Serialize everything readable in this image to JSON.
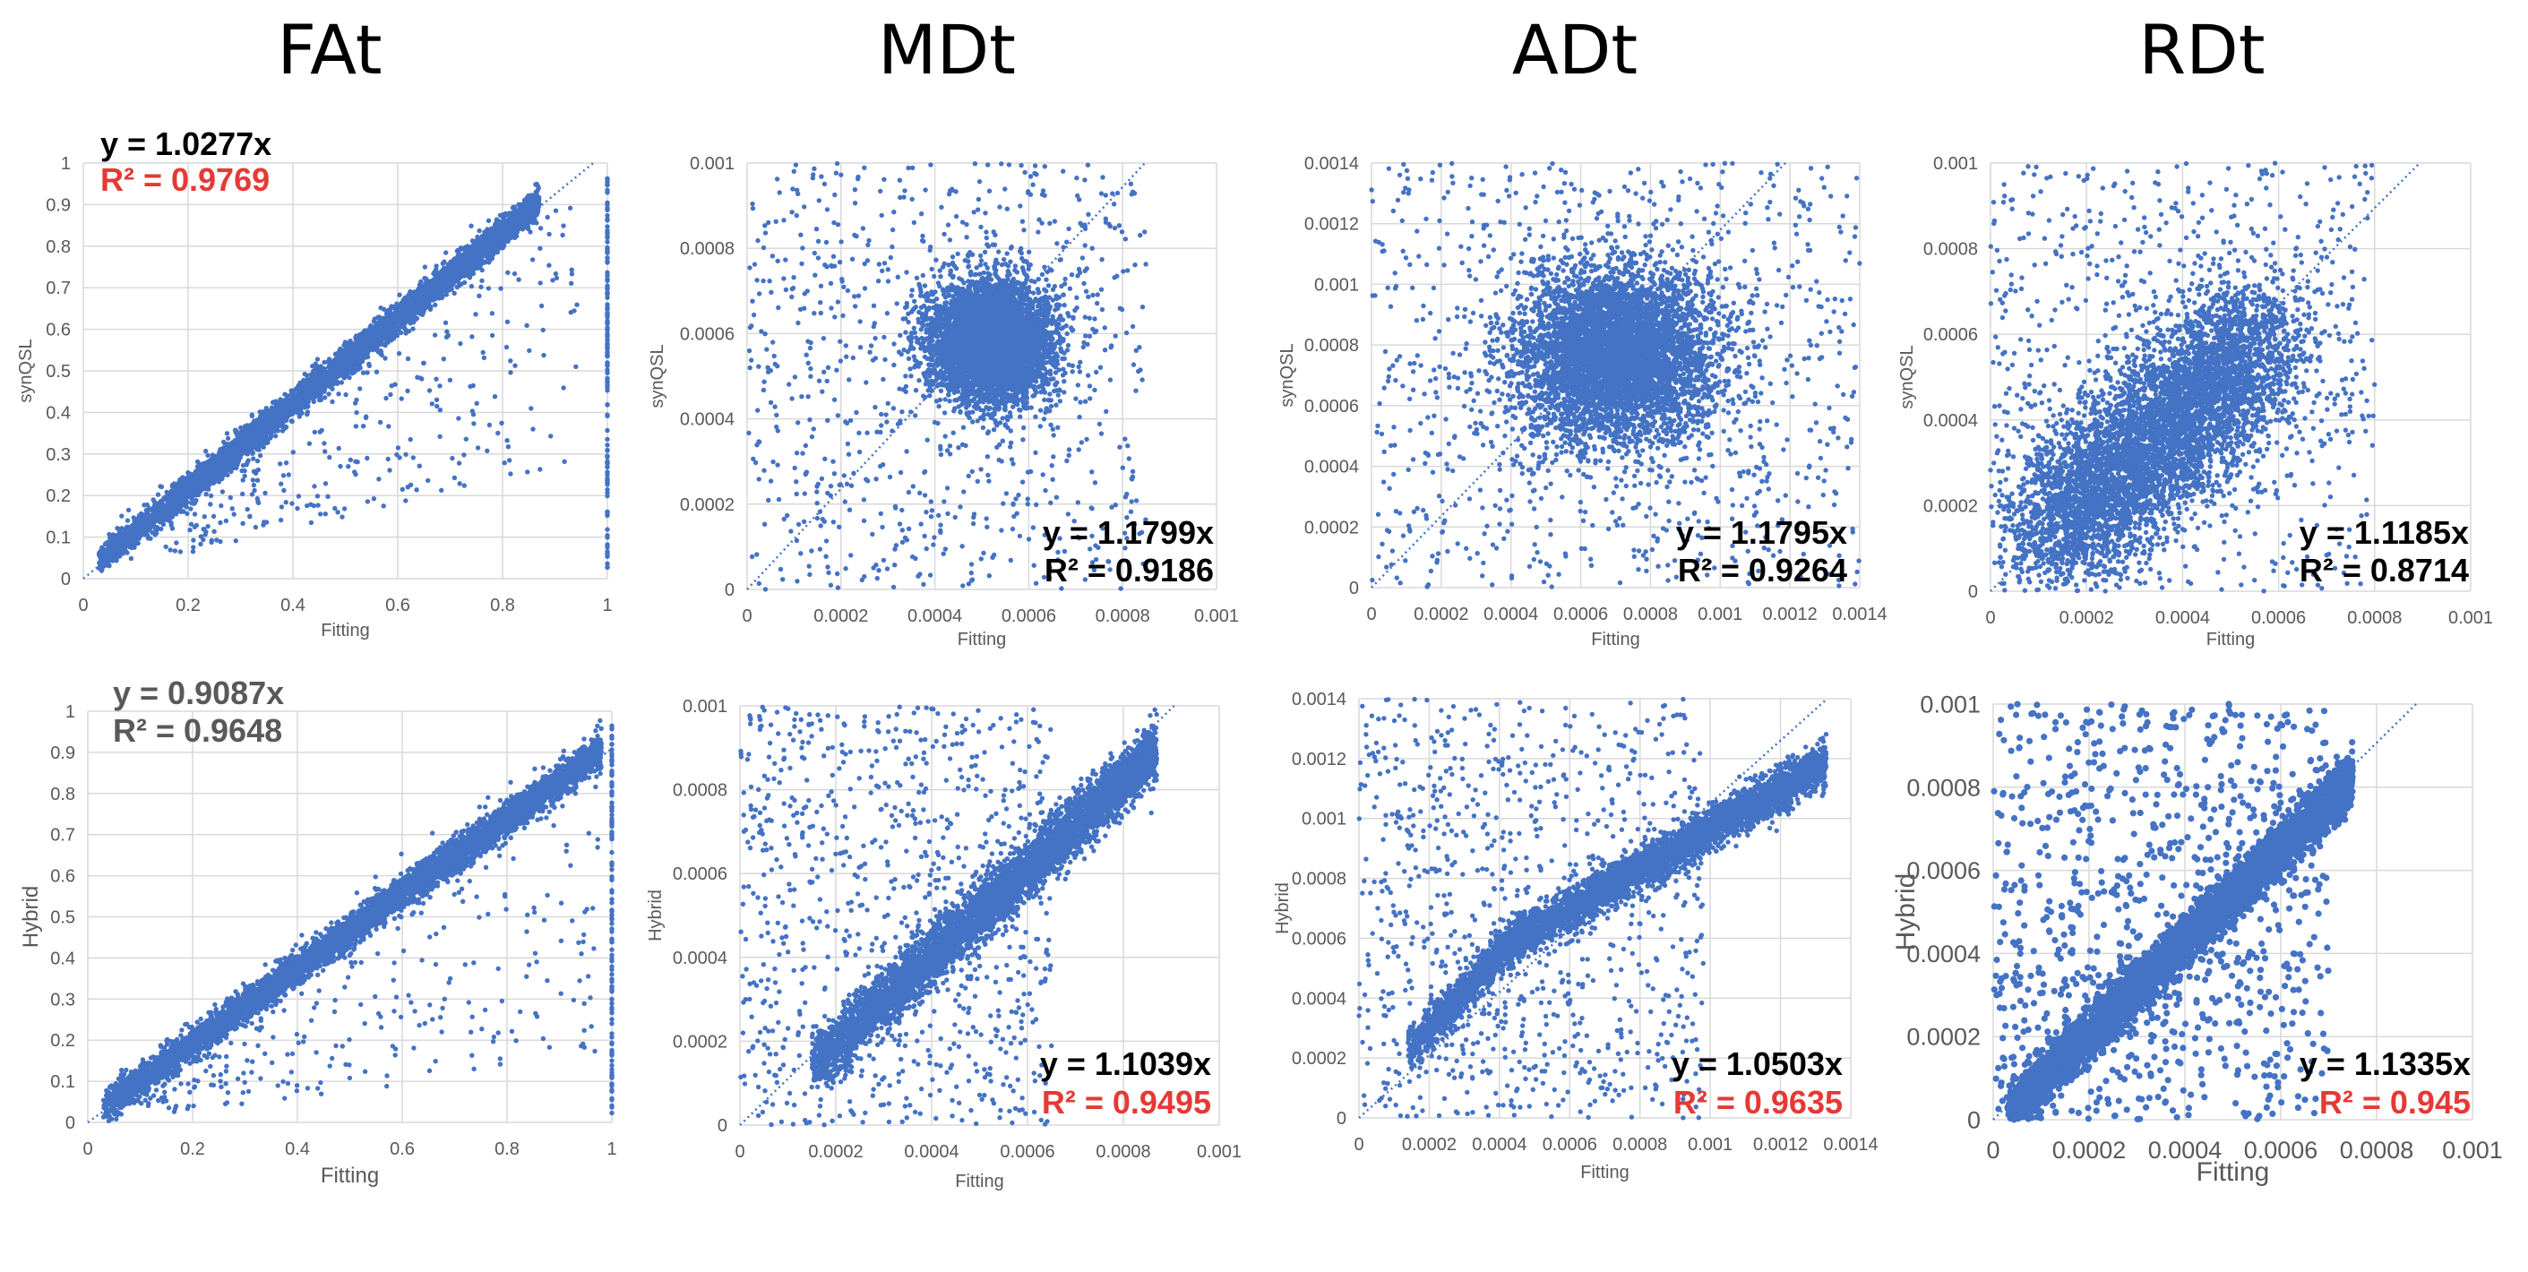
{
  "column_titles": [
    "FAt",
    "MDt",
    "ADt",
    "RDt"
  ],
  "colors": {
    "points": "#4472C4",
    "grid": "#D9D9D9",
    "axis_text": "#595959",
    "red": "#E53935",
    "black": "#000000",
    "gray": "#595959"
  },
  "chart_data": [
    {
      "type": "scatter",
      "title": "",
      "xlabel": "Fitting",
      "ylabel": "synQSL",
      "xlim": [
        0,
        1
      ],
      "ylim": [
        0,
        1
      ],
      "xticks": [
        "0",
        "0.2",
        "0.4",
        "0.6",
        "0.8",
        "1"
      ],
      "yticks": [
        "0",
        "0.1",
        "0.2",
        "0.3",
        "0.4",
        "0.5",
        "0.6",
        "0.7",
        "0.8",
        "0.9",
        "1"
      ],
      "trendline": {
        "slope": 1.0277,
        "style": "dotted"
      },
      "equation": "y = 1.0277x",
      "r2": "R² = 0.9769",
      "r2_color": "red",
      "point_cloud": {
        "n_points": "~10000",
        "core": "tight band along y ≈ 1.03x from x≈0.03 to x≈0.87",
        "outliers": "sparse points below the line, column of points at x=1"
      }
    },
    {
      "type": "scatter",
      "title": "",
      "xlabel": "Fitting",
      "ylabel": "synQSL",
      "xlim": [
        0,
        0.001
      ],
      "ylim": [
        0,
        0.001
      ],
      "xticks": [
        "0",
        "0.0002",
        "0.0004",
        "0.0006",
        "0.0008",
        "0.001"
      ],
      "yticks": [
        "0",
        "0.0002",
        "0.0004",
        "0.0006",
        "0.0008",
        "0.001"
      ],
      "trendline": {
        "slope": 1.1799,
        "style": "dotted"
      },
      "equation": "y = 1.1799x",
      "r2": "R² = 0.9186",
      "r2_color": "black",
      "point_cloud": {
        "n_points": "~10000",
        "core": "dense cluster centered near (0.00052, 0.00058)",
        "outliers": "scattered uniformly across the plot"
      }
    },
    {
      "type": "scatter",
      "title": "",
      "xlabel": "Fitting",
      "ylabel": "synQSL",
      "xlim": [
        0,
        0.0014
      ],
      "ylim": [
        0,
        0.0014
      ],
      "xticks": [
        "0",
        "0.0002",
        "0.0004",
        "0.0006",
        "0.0008",
        "0.001",
        "0.0012",
        "0.0014"
      ],
      "yticks": [
        "0",
        "0.0002",
        "0.0004",
        "0.0006",
        "0.0008",
        "0.001",
        "0.0012",
        "0.0014"
      ],
      "trendline": {
        "slope": 1.1795,
        "style": "dotted"
      },
      "equation": "y = 1.1795x",
      "r2": "R² = 0.9264",
      "r2_color": "black",
      "point_cloud": {
        "n_points": "~10000",
        "core": "dense cluster centered near (0.0007, 0.00077)",
        "outliers": "scattered across the plot"
      }
    },
    {
      "type": "scatter",
      "title": "",
      "xlabel": "Fitting",
      "ylabel": "synQSL",
      "xlim": [
        0,
        0.001
      ],
      "ylim": [
        0,
        0.001
      ],
      "xticks": [
        "0",
        "0.0002",
        "0.0004",
        "0.0006",
        "0.0008",
        "0.001"
      ],
      "yticks": [
        "0",
        "0.0002",
        "0.0004",
        "0.0006",
        "0.0008",
        "0.001"
      ],
      "trendline": {
        "slope": 1.1185,
        "style": "dotted"
      },
      "equation": "y = 1.1185x",
      "r2": "R² = 0.8714",
      "r2_color": "black",
      "point_cloud": {
        "n_points": "~10000",
        "core": "broad elongated cluster from (0.0001, 0.0001) to (0.0006, 0.00065)",
        "outliers": "scattered across the plot"
      }
    },
    {
      "type": "scatter",
      "title": "",
      "xlabel": "Fitting",
      "ylabel": "Hybrid",
      "xlim": [
        0,
        1
      ],
      "ylim": [
        0,
        1
      ],
      "xticks": [
        "0",
        "0.2",
        "0.4",
        "0.6",
        "0.8",
        "1"
      ],
      "yticks": [
        "0",
        "0.1",
        "0.2",
        "0.3",
        "0.4",
        "0.5",
        "0.6",
        "0.7",
        "0.8",
        "0.9",
        "1"
      ],
      "trendline": {
        "slope": 0.9087,
        "style": "dotted"
      },
      "equation": "y = 0.9087x",
      "r2": "R² = 0.9648",
      "r2_color": "gray",
      "point_cloud": {
        "n_points": "~10000",
        "core": "tight band along y ≈ 0.91x from x≈0.03 to x≈0.98",
        "outliers": "sparse points below the line, column of points at x=1"
      }
    },
    {
      "type": "scatter",
      "title": "",
      "xlabel": "Fitting",
      "ylabel": "Hybrid",
      "xlim": [
        0,
        0.001
      ],
      "ylim": [
        0,
        0.001
      ],
      "xticks": [
        "0",
        "0.0002",
        "0.0004",
        "0.0006",
        "0.0008",
        "0.001"
      ],
      "yticks": [
        "0",
        "0.0002",
        "0.0004",
        "0.0006",
        "0.0008",
        "0.001"
      ],
      "trendline": {
        "slope": 1.1039,
        "style": "dotted"
      },
      "equation": "y = 1.1039x",
      "r2": "R² = 0.9495",
      "r2_color": "red",
      "point_cloud": {
        "n_points": "~10000",
        "core": "band along y ≈ 1.1x from x≈0.0002 to x≈0.00085",
        "outliers": "scattered mostly in upper-left region"
      }
    },
    {
      "type": "scatter",
      "title": "",
      "xlabel": "Fitting",
      "ylabel": "Hybrid",
      "xlim": [
        0,
        0.0014
      ],
      "ylim": [
        0,
        0.0014
      ],
      "xticks": [
        "0",
        "0.0002",
        "0.0004",
        "0.0006",
        "0.0008",
        "0.001",
        "0.0012",
        "0.0014"
      ],
      "yticks": [
        "0",
        "0.0002",
        "0.0004",
        "0.0006",
        "0.0008",
        "0.001",
        "0.0012",
        "0.0014"
      ],
      "trendline": {
        "slope": 1.0503,
        "style": "dotted"
      },
      "equation": "y = 1.0503x",
      "r2": "R² = 0.9635",
      "r2_color": "red",
      "point_cloud": {
        "n_points": "~10000",
        "core": "curved band from (0.0002, 0.0002) to (0.0013, 0.0011)",
        "outliers": "scattered in upper-left region"
      }
    },
    {
      "type": "scatter",
      "title": "",
      "xlabel": "Fitting",
      "ylabel": "Hybrid",
      "xlim": [
        0,
        0.001
      ],
      "ylim": [
        0,
        0.001
      ],
      "xticks": [
        "0",
        "0.0002",
        "0.0004",
        "0.0006",
        "0.0008",
        "0.001"
      ],
      "yticks": [
        "0",
        "0.0002",
        "0.0004",
        "0.0006",
        "0.0008",
        "0.001"
      ],
      "trendline": {
        "slope": 1.1335,
        "style": "dotted"
      },
      "equation": "y = 1.1335x",
      "r2": "R² = 0.945",
      "r2_color": "red",
      "point_cloud": {
        "n_points": "~10000",
        "core": "band along y ≈ 1.13x from x≈0.0001 to x≈0.00075",
        "outliers": "scattered in upper-left region"
      }
    }
  ]
}
